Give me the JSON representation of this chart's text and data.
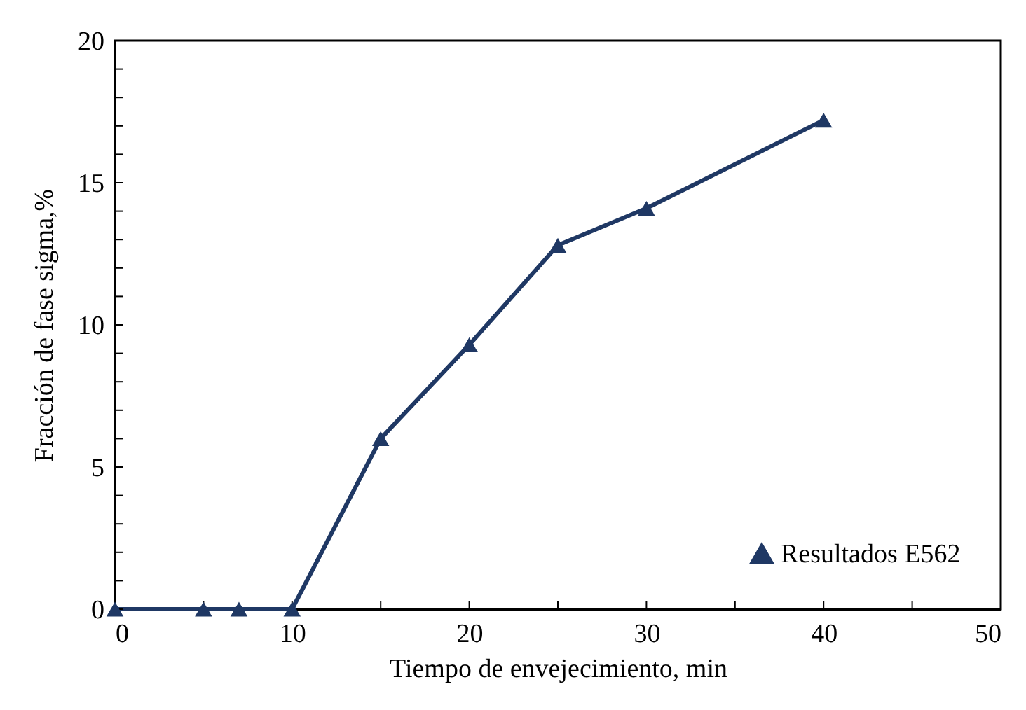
{
  "chart_data": {
    "type": "line",
    "xlabel": "Tiempo  de envejecimiento,  min",
    "ylabel": "Fracción de fase sigma,%",
    "x": [
      0,
      5,
      7,
      10,
      15,
      20,
      25,
      30,
      40
    ],
    "series": [
      {
        "name": "Resultados E562",
        "color": "#1f3864",
        "values": [
          0,
          0,
          0,
          0,
          6.0,
          9.3,
          12.8,
          14.1,
          17.2
        ]
      }
    ],
    "xlim": [
      0,
      50
    ],
    "ylim": [
      0,
      20
    ],
    "xticks": [
      0,
      {
        "value": 5,
        "label": null
      },
      10,
      {
        "value": 15,
        "label": null
      },
      20,
      {
        "value": 25,
        "label": null
      },
      30,
      {
        "value": 35,
        "label": null
      },
      40,
      {
        "value": 45,
        "label": null
      },
      50
    ],
    "yticks": [
      0,
      {
        "value": 1,
        "label": null
      },
      {
        "value": 2,
        "label": null
      },
      {
        "value": 3,
        "label": null
      },
      {
        "value": 4,
        "label": null
      },
      5,
      {
        "value": 6,
        "label": null
      },
      {
        "value": 7,
        "label": null
      },
      {
        "value": 8,
        "label": null
      },
      {
        "value": 9,
        "label": null
      },
      10,
      {
        "value": 11,
        "label": null
      },
      {
        "value": 12,
        "label": null
      },
      {
        "value": 13,
        "label": null
      },
      {
        "value": 14,
        "label": null
      },
      15,
      {
        "value": 16,
        "label": null
      },
      {
        "value": 17,
        "label": null
      },
      {
        "value": 18,
        "label": null
      },
      {
        "value": 19,
        "label": null
      },
      20
    ],
    "grid": false,
    "legend": "bottom right",
    "marker": "triangle",
    "line_style": "solid"
  }
}
